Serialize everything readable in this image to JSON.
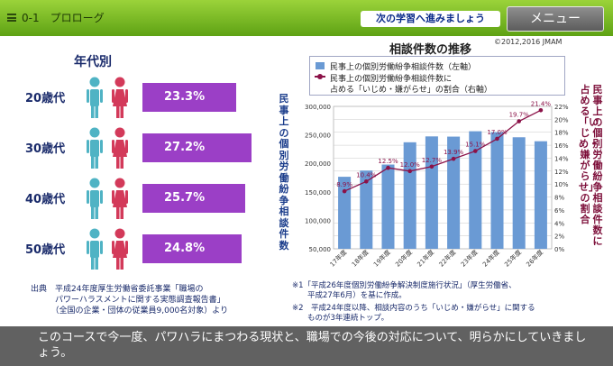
{
  "header": {
    "lesson_title": "0-1　プロローグ",
    "next_banner": "次の学習へ進みましょう",
    "menu_label": "メニュー",
    "copyright": "©2012,2016 JMAM"
  },
  "left_panel": {
    "title": "年代別",
    "rows": [
      {
        "age": "20歳代",
        "percent": "23.3%",
        "value": 23.3
      },
      {
        "age": "30歳代",
        "percent": "27.2%",
        "value": 27.2
      },
      {
        "age": "40歳代",
        "percent": "25.7%",
        "value": 25.7
      },
      {
        "age": "50歳代",
        "percent": "24.8%",
        "value": 24.8
      }
    ],
    "source_lines": [
      "出典　平成24年度厚生労働省委託事業「職場の",
      "　　　パワーハラスメントに関する実態調査報告書」",
      "　　　（全国の企業・団体の従業員9,000名対象）より"
    ],
    "colors": {
      "male": "#4fb3c4",
      "female": "#d33a5a",
      "bar": "#9b3fc6"
    }
  },
  "chart_data": {
    "type": "bar",
    "title": "相談件数の推移",
    "categories": [
      "17年度",
      "18年度",
      "19年度",
      "20年度",
      "21年度",
      "22年度",
      "23年度",
      "24年度",
      "25年度",
      "26年度"
    ],
    "series": [
      {
        "name": "民事上の個別労働紛争相談件数（左軸）",
        "type": "bar",
        "axis": "left",
        "values": [
          176429,
          187387,
          197904,
          236993,
          247302,
          246907,
          256343,
          254719,
          245783,
          238806
        ]
      },
      {
        "name": "民事上の個別労働紛争相談件数に占める「いじめ・嫌がらせ」の割合（右軸）",
        "type": "line",
        "axis": "right",
        "values": [
          8.9,
          10.4,
          12.5,
          12.0,
          12.7,
          13.9,
          15.1,
          17.0,
          19.7,
          21.4
        ],
        "labels": [
          "8.9%",
          "10.4%",
          "12.5%",
          "12.0%",
          "12.7%",
          "13.9%",
          "15.1%",
          "17.0%",
          "19.7%",
          "21.4%"
        ]
      }
    ],
    "legend_lines": [
      "民事上の個別労働紛争相談件数（左軸）",
      "民事上の個別労働紛争相談件数に",
      "占める「いじめ・嫌がらせ」の割合（右軸）"
    ],
    "ylabel_left": "民事上の個別労働紛争相談件数",
    "ylabel_right_lines": [
      "民事上の個別労働紛争相談件数に",
      "占める「いじめ・嫌がらせ」の割合"
    ],
    "ylim_left": [
      50000,
      300000
    ],
    "yticks_left": [
      "50,000",
      "100,000",
      "150,000",
      "200,000",
      "250,000",
      "300,000"
    ],
    "ylim_right": [
      0,
      22
    ],
    "yticks_right": [
      "0%",
      "2%",
      "4%",
      "6%",
      "8%",
      "10%",
      "12%",
      "14%",
      "16%",
      "18%",
      "20%",
      "22%"
    ],
    "colors": {
      "bar": "#6a9ad4",
      "line": "#8b1248",
      "grid": "#c8c8c8"
    }
  },
  "notes": [
    {
      "lines": [
        "※1「平成26年度個別労働紛争解決制度施行状況」（厚生労働省、",
        "　　平成27年6月）を基に作成。"
      ]
    },
    {
      "lines": [
        "※2　平成24年度以降、相談内容のうち「いじめ・嫌がらせ」に関する",
        "　　ものが3年連続トップ。"
      ]
    }
  ],
  "footer": {
    "narration": "このコースで今一度、パワハラにまつわる現状と、職場での今後の対応について、明らかにしていきましょう。"
  }
}
